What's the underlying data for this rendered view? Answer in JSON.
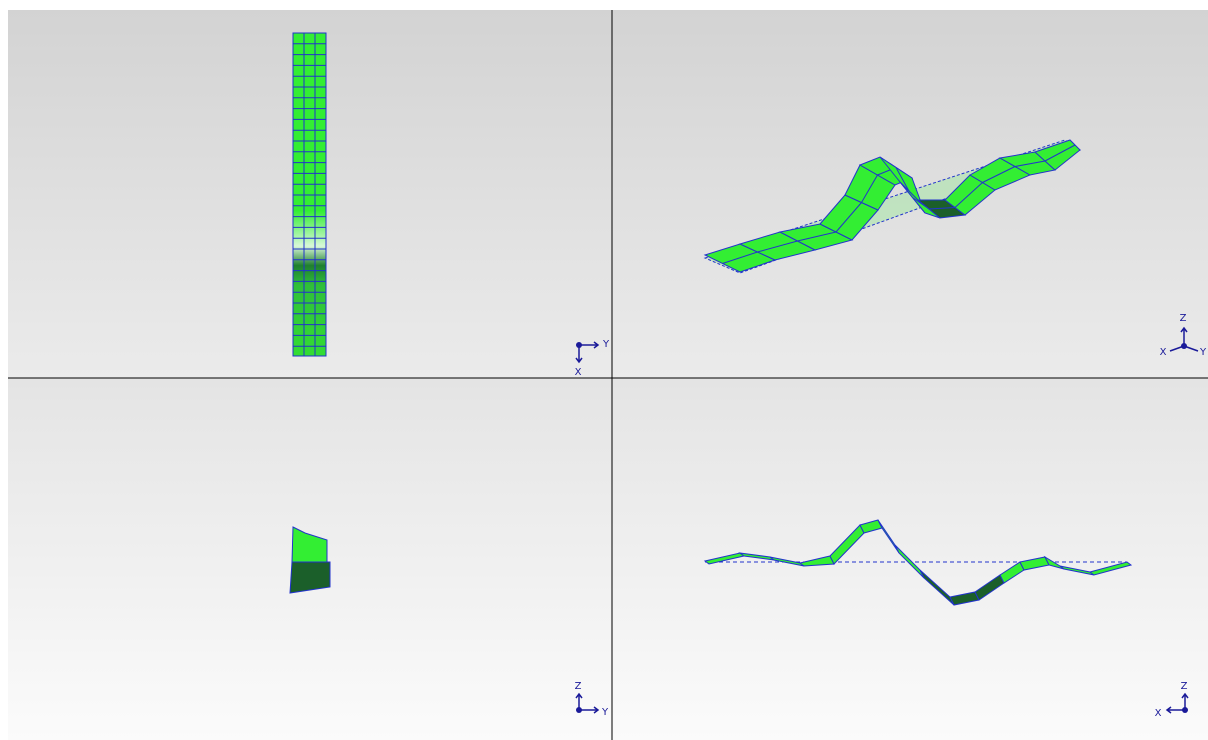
{
  "viewports": [
    {
      "triad": [
        "Y",
        "X"
      ]
    },
    {
      "triad": [
        "Z",
        "X",
        "Y"
      ]
    },
    {
      "triad": [
        "Z",
        "Y"
      ]
    },
    {
      "triad": [
        "Z",
        "X"
      ]
    }
  ]
}
